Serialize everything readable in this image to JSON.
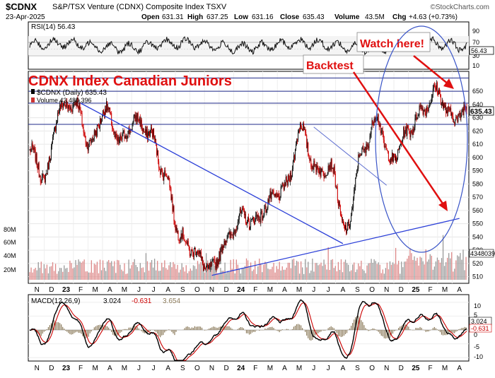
{
  "header": {
    "symbol": "$CDNX",
    "name": "S&P/TSX Venture (CDNX) Composite Index  TSXV",
    "date": "23-Apr-2025",
    "open_label": "Open",
    "open": "631.31",
    "high_label": "High",
    "high": "637.25",
    "low_label": "Low",
    "low": "631.16",
    "close_label": "Close",
    "close": "635.43",
    "volume_label": "Volume",
    "volume": "43.5M",
    "chg_label": "Chg",
    "chg": "+4.63 (+0.73%)",
    "watermark": "©StockCharts.com"
  },
  "rsi_panel": {
    "label": "RSI(14) 56.43",
    "current": 56.43,
    "current_label": "56.43",
    "ticks": [
      "90",
      "70",
      "50",
      "30",
      "10"
    ],
    "levels": [
      70,
      30
    ]
  },
  "price_panel": {
    "legend_price": "$CDNX (Daily) 635.43",
    "legend_volume": "Volume 43,480,396",
    "last_price_label": "635.43",
    "last_volume_label": "43480396",
    "ylim": [
      505,
      665
    ],
    "y_ticks": [
      "650",
      "640",
      "630",
      "620",
      "610",
      "600",
      "590",
      "580",
      "570",
      "560",
      "550",
      "540",
      "530",
      "520",
      "510"
    ],
    "volume_ticks": [
      "80M",
      "60M",
      "40M",
      "20M"
    ],
    "horizontal_levels": [
      660,
      650,
      641,
      625
    ],
    "trendlines": [
      {
        "from": [
          "2023-02",
          641
        ],
        "to": [
          "2024-08",
          535
        ]
      },
      {
        "from": [
          "2023-11",
          511
        ],
        "to": [
          "2025-04",
          554
        ]
      },
      {
        "from": [
          "2024-06",
          623
        ],
        "to": [
          "2024-11",
          579
        ]
      }
    ]
  },
  "annotations": {
    "title": "CDNX Index  Canadian Juniors",
    "backtest": "Backtest",
    "watch": "Watch here!"
  },
  "macd_panel": {
    "label": "MACD(12,26,9)",
    "macd": "3.024",
    "signal": "-0.631",
    "hist": "3.654",
    "macd_color": "#000000",
    "signal_color": "#cc0000",
    "hist_color": "#8b7a5a",
    "axis_macd_label": "3.024",
    "axis_signal_label": "-0.631",
    "ticks": [
      "10",
      "5",
      "0",
      "-5",
      "-10"
    ]
  },
  "x_axis": [
    "N",
    "D",
    "23",
    "F",
    "M",
    "A",
    "M",
    "J",
    "J",
    "A",
    "S",
    "O",
    "N",
    "D",
    "24",
    "F",
    "M",
    "A",
    "M",
    "J",
    "J",
    "A",
    "S",
    "O",
    "N",
    "D",
    "25",
    "F",
    "M",
    "A"
  ],
  "chart_data": {
    "type": "line",
    "title": "CDNX Index  Canadian Juniors",
    "series": [
      {
        "name": "$CDNX (Daily) 635.43",
        "x": [
          "2022-11",
          "2022-12",
          "2023-01",
          "2023-02",
          "2023-03",
          "2023-04",
          "2023-05",
          "2023-06",
          "2023-07",
          "2023-08",
          "2023-09",
          "2023-10",
          "2023-11",
          "2023-12",
          "2024-01",
          "2024-02",
          "2024-03",
          "2024-04",
          "2024-05",
          "2024-06",
          "2024-07",
          "2024-08",
          "2024-09",
          "2024-10",
          "2024-11",
          "2024-12",
          "2025-01",
          "2025-02",
          "2025-03",
          "2025-04"
        ],
        "values": [
          605,
          585,
          637,
          641,
          610,
          636,
          612,
          628,
          618,
          586,
          540,
          528,
          515,
          536,
          555,
          552,
          568,
          578,
          622,
          590,
          592,
          543,
          602,
          629,
          597,
          618,
          635,
          650,
          630,
          635
        ]
      }
    ],
    "ylim": [
      505,
      665
    ],
    "rsi_last": 56.43,
    "macd_last": {
      "macd": 3.024,
      "signal": -0.631,
      "histogram": 3.654
    }
  }
}
